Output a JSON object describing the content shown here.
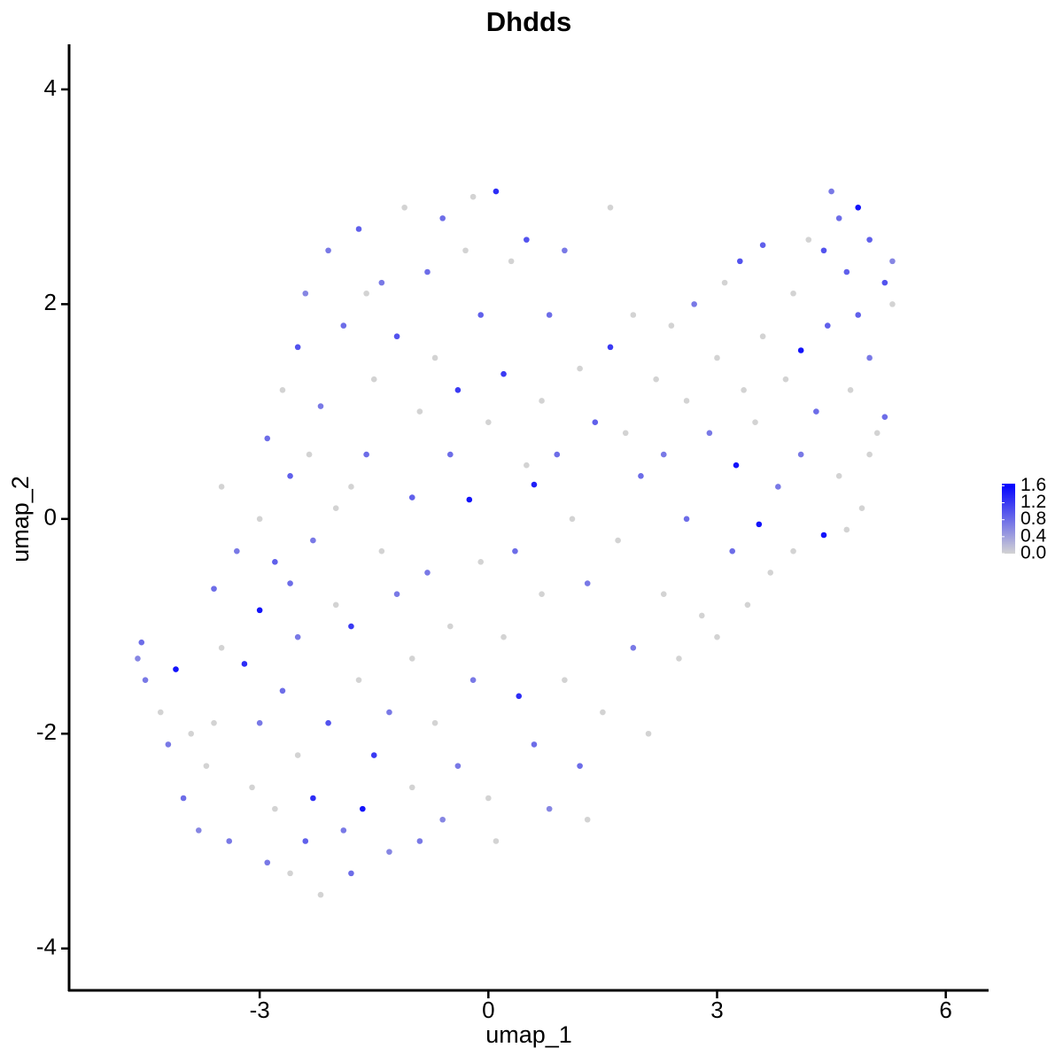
{
  "chart_data": {
    "type": "scatter",
    "title": "Dhdds",
    "x_label": "umap_1",
    "y_label": "umap_2",
    "xlim": [
      -5.5,
      6.55
    ],
    "ylim": [
      -4.39,
      4.42
    ],
    "xticks": [
      -3,
      0,
      3,
      6
    ],
    "yticks": [
      -4,
      -2,
      0,
      2,
      4
    ],
    "x": [
      -4.6,
      -4.55,
      -4.5,
      -4.3,
      -4.1,
      -4.2,
      -4.0,
      -3.8,
      -3.7,
      -3.6,
      -3.6,
      -3.5,
      -3.4,
      -3.3,
      -3.2,
      -3.1,
      -3.0,
      -3.0,
      -3.0,
      -2.9,
      -2.9,
      -2.8,
      -2.8,
      -2.7,
      -2.7,
      -2.6,
      -2.6,
      -2.5,
      -2.5,
      -2.5,
      -2.4,
      -2.4,
      -2.35,
      -2.3,
      -2.3,
      -2.2,
      -2.2,
      -2.1,
      -2.1,
      -2.0,
      -2.0,
      -1.9,
      -1.9,
      -1.8,
      -1.8,
      -1.7,
      -1.7,
      -1.65,
      -1.6,
      -1.5,
      -1.5,
      -1.4,
      -1.4,
      -1.3,
      -1.3,
      -1.2,
      -1.2,
      -1.1,
      -1.0,
      -1.0,
      -1.0,
      -0.9,
      -0.8,
      -0.8,
      -0.7,
      -0.7,
      -0.6,
      -0.6,
      -0.5,
      -0.5,
      -0.4,
      -0.4,
      -0.3,
      -0.25,
      -0.2,
      -0.2,
      -0.1,
      -0.1,
      0.0,
      0.0,
      0.1,
      0.1,
      0.2,
      0.2,
      0.3,
      0.35,
      0.4,
      0.5,
      0.5,
      0.6,
      0.6,
      0.7,
      0.7,
      0.8,
      0.8,
      0.9,
      1.0,
      1.0,
      1.1,
      1.2,
      1.2,
      1.3,
      1.4,
      1.5,
      1.6,
      1.6,
      1.7,
      1.8,
      1.9,
      1.9,
      2.0,
      2.1,
      2.2,
      2.3,
      2.3,
      2.4,
      2.5,
      2.6,
      2.6,
      2.7,
      2.8,
      2.9,
      3.0,
      3.0,
      3.1,
      3.2,
      3.25,
      3.3,
      3.35,
      3.4,
      3.5,
      3.55,
      3.6,
      3.6,
      3.7,
      3.8,
      3.9,
      4.0,
      4.0,
      4.1,
      4.1,
      4.2,
      4.3,
      4.4,
      4.4,
      4.45,
      4.5,
      4.6,
      4.6,
      4.7,
      4.75,
      4.85,
      4.85,
      4.9,
      5.0,
      5.0,
      5.1,
      5.2,
      5.2,
      5.3,
      5.3,
      5.0,
      4.7,
      -3.9,
      -2.6,
      -3.5,
      -1.8,
      -0.9,
      -1.6,
      1.3
    ],
    "values": [
      -1.3,
      -1.15,
      -1.5,
      -1.8,
      -1.4,
      -2.1,
      -2.6,
      -2.9,
      -2.3,
      -1.9,
      -0.65,
      -1.2,
      -3.0,
      -0.3,
      -1.35,
      -2.5,
      -0.85,
      -1.9,
      0.0,
      -3.2,
      0.75,
      -0.4,
      -2.7,
      -1.6,
      1.2,
      -0.6,
      0.4,
      -1.1,
      1.6,
      -2.2,
      -3.0,
      2.1,
      0.6,
      -2.6,
      -0.2,
      1.05,
      -3.5,
      -1.9,
      2.5,
      -0.8,
      0.1,
      1.8,
      -2.9,
      -3.3,
      -1.0,
      2.7,
      -1.5,
      -2.7,
      0.6,
      1.3,
      -2.2,
      2.2,
      -0.3,
      -1.8,
      -3.1,
      1.7,
      -0.7,
      2.9,
      0.2,
      -1.3,
      -2.5,
      1.0,
      2.3,
      -0.5,
      -1.9,
      1.5,
      2.8,
      -2.8,
      0.6,
      -1.0,
      1.2,
      -2.3,
      2.5,
      0.18,
      -1.5,
      3.0,
      1.9,
      -0.4,
      -2.6,
      0.9,
      3.05,
      -3.0,
      1.35,
      -1.1,
      2.4,
      -0.3,
      -1.65,
      2.6,
      0.5,
      0.32,
      -2.1,
      1.1,
      -0.7,
      1.9,
      -2.7,
      0.6,
      -1.5,
      2.5,
      0.0,
      -2.3,
      1.4,
      -0.6,
      0.9,
      -1.8,
      1.6,
      2.9,
      -0.2,
      0.8,
      -1.2,
      1.9,
      0.4,
      -2.0,
      1.3,
      -0.7,
      0.6,
      1.8,
      -1.3,
      0.0,
      1.1,
      2.0,
      -0.9,
      0.8,
      -1.1,
      1.5,
      2.2,
      -0.3,
      0.5,
      2.4,
      1.2,
      -0.8,
      0.9,
      -0.05,
      2.55,
      1.7,
      -0.5,
      0.3,
      1.3,
      2.1,
      -0.3,
      1.57,
      0.6,
      2.6,
      1.0,
      -0.15,
      2.5,
      1.8,
      3.05,
      2.8,
      0.4,
      2.3,
      1.2,
      2.9,
      1.9,
      0.1,
      2.6,
      1.5,
      0.8,
      2.2,
      0.95,
      2.4,
      2.0,
      0.6,
      -0.1,
      -2.0,
      -3.3,
      0.3,
      0.3,
      -3.0,
      2.1,
      -2.8
    ],
    "color_values": [
      0.6,
      0.8,
      0.7,
      0,
      1.5,
      0.7,
      0.8,
      0.6,
      0,
      0,
      0.8,
      0,
      0.7,
      0.7,
      1.3,
      0,
      1.5,
      0.7,
      0,
      0.7,
      0.8,
      0.9,
      0,
      0.8,
      0,
      0.8,
      0.9,
      0.7,
      1.0,
      0,
      0.9,
      0.6,
      0,
      1.3,
      0.7,
      0.7,
      0,
      1.0,
      0.7,
      0,
      0,
      0.8,
      0.7,
      0.8,
      1.2,
      0.9,
      0,
      1.5,
      0.8,
      0,
      1.2,
      0.7,
      0,
      0.7,
      0.6,
      1.0,
      0.7,
      0,
      0.9,
      0,
      0,
      0,
      0.8,
      0.7,
      0,
      0,
      0.8,
      0.6,
      0.8,
      0,
      1.2,
      0.7,
      0,
      1.5,
      0.7,
      0,
      0.9,
      0,
      0,
      0,
      1.3,
      0,
      1.2,
      0,
      0,
      0.8,
      1.3,
      1.0,
      0,
      1.4,
      0.8,
      0,
      0,
      0.8,
      0.6,
      0.8,
      0,
      0.7,
      0,
      0.8,
      0,
      0.7,
      0.9,
      0,
      1.2,
      0,
      0,
      0,
      0.7,
      0,
      0.8,
      0,
      0,
      0,
      0.7,
      0,
      0,
      0.8,
      0,
      0.7,
      0,
      0.7,
      0,
      0,
      0,
      0.8,
      1.5,
      1.0,
      0,
      0,
      0,
      1.5,
      0.9,
      0,
      0,
      0.7,
      0,
      0,
      0,
      1.5,
      0.7,
      0,
      0.8,
      1.5,
      1.0,
      0.9,
      0.7,
      0.8,
      0,
      0.9,
      0,
      1.5,
      0.9,
      0,
      0.9,
      0.7,
      0,
      1.0,
      0.8,
      0.6,
      0,
      0,
      0,
      0,
      0,
      0,
      0,
      0.7,
      0,
      0
    ],
    "colorbar": {
      "lim": [
        0,
        1.65
      ],
      "low": "#d3d3d3",
      "high": "#0000ff",
      "ticks": [
        {
          "value": 0,
          "label": "0.0"
        },
        0.4,
        0.8,
        1.2,
        1.6
      ]
    }
  }
}
